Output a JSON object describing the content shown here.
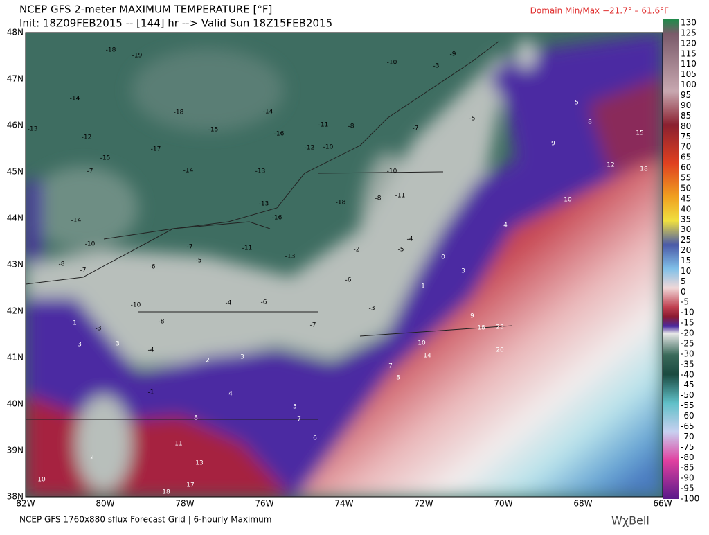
{
  "header": {
    "title": "NCEP GFS 2-meter MAXIMUM TEMPERATURE [°F]",
    "init": "Init: 18Z09FEB2015 -- [144] hr --> Valid Sun 18Z15FEB2015",
    "domain": "Domain Min/Max −21.7° –  61.6°F"
  },
  "axes": {
    "lat": [
      "48N",
      "47N",
      "46N",
      "45N",
      "44N",
      "43N",
      "42N",
      "41N",
      "40N",
      "39N",
      "38N"
    ],
    "lon": [
      "82W",
      "80W",
      "78W",
      "76W",
      "74W",
      "72W",
      "70W",
      "68W",
      "66W"
    ]
  },
  "colorbar": {
    "labels": [
      130,
      125,
      120,
      115,
      110,
      105,
      100,
      95,
      90,
      85,
      80,
      75,
      70,
      65,
      60,
      55,
      50,
      45,
      40,
      35,
      30,
      25,
      20,
      15,
      10,
      5,
      0,
      -5,
      -10,
      -15,
      -20,
      -25,
      -30,
      -35,
      -40,
      -45,
      -50,
      -55,
      -60,
      -65,
      -70,
      -75,
      -80,
      -85,
      -90,
      -95,
      -100
    ]
  },
  "map": {
    "values": [
      -18,
      -19,
      -14,
      -13,
      -12,
      -15,
      -7,
      -14,
      -10,
      -17,
      -18,
      -15,
      -14,
      -13,
      -14,
      -16,
      -11,
      -10,
      -12,
      -8,
      -3,
      -9,
      -10,
      -5,
      -7,
      -10,
      -8,
      -11,
      -13,
      -16,
      -18,
      -7,
      -5,
      -11,
      -13,
      -6,
      -8,
      -7,
      -10,
      -8,
      -4,
      -6,
      -7,
      -2,
      -3,
      -6,
      -5,
      -4,
      0,
      1,
      3,
      1,
      3,
      3,
      -3,
      -4,
      -1,
      3,
      4,
      5,
      7,
      8,
      11,
      13,
      17,
      18,
      10,
      2,
      5,
      8,
      9,
      12,
      18,
      15,
      10,
      4,
      10,
      14,
      18,
      23,
      20,
      9,
      7,
      8,
      6,
      2
    ]
  },
  "footer": {
    "text": "NCEP GFS 1760x880 sflux Forecast Grid | 6-hourly Maximum",
    "logo": "WχBell"
  }
}
